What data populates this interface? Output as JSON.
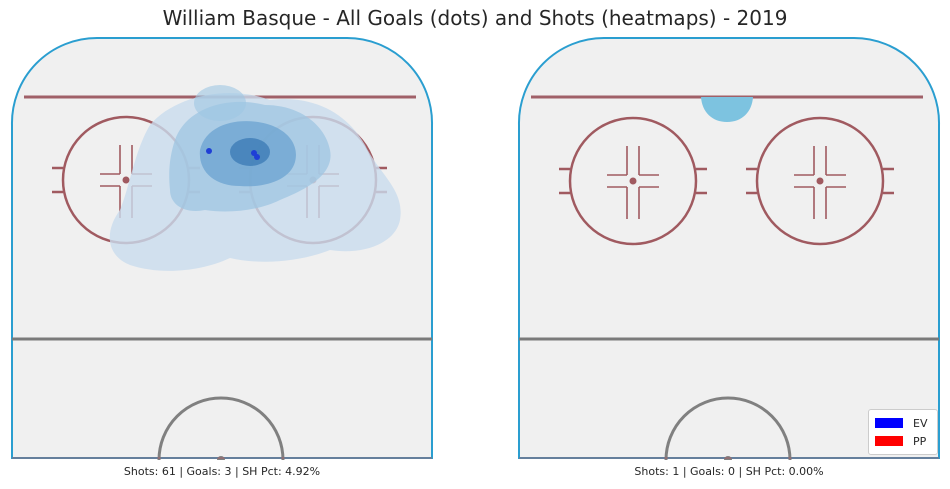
{
  "chart_data": {
    "type": "scatter",
    "title": "William Basque - All Goals (dots) and Shots (heatmaps) - 2019",
    "legend": {
      "placement": "bottom-right",
      "entries": [
        {
          "label": "EV",
          "color": "#0000ff"
        },
        {
          "label": "PP",
          "color": "#ff0000"
        }
      ]
    },
    "panels": [
      {
        "name": "left",
        "caption": "Shots: 61 | Goals: 3 | SH Pct: 4.92%",
        "heatmap_colors": [
          "#c9dcee",
          "#9ec6e2",
          "#6ba3d0",
          "#3a79b4"
        ],
        "goals": [
          {
            "situation": "EV",
            "color": "#1f3fd6"
          },
          {
            "situation": "EV",
            "color": "#1f3fd6"
          },
          {
            "situation": "EV",
            "color": "#1f3fd6"
          }
        ]
      },
      {
        "name": "right",
        "caption": "Shots: 1 | Goals: 0 | SH Pct: 0.00%",
        "heatmap_colors": [
          "#7dc3e0"
        ],
        "goals": []
      }
    ]
  }
}
